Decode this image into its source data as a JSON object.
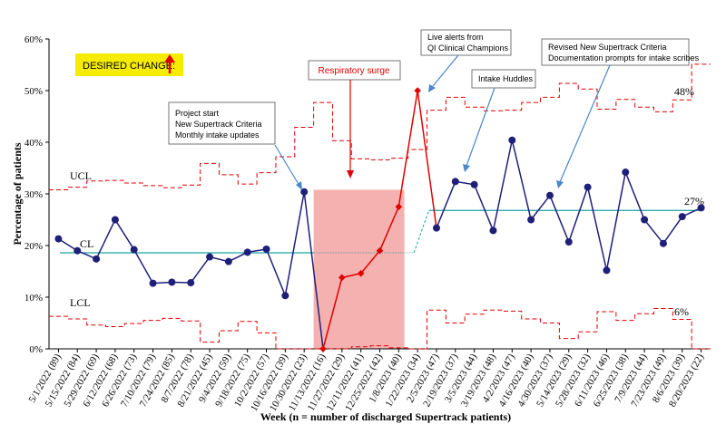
{
  "chart_data": {
    "type": "line",
    "title": "",
    "xlabel": "Week (n = number of discharged Supertrack patients)",
    "ylabel": "Percentage of patients",
    "ylim": [
      0,
      60
    ],
    "y_ticks": [
      "0%",
      "10%",
      "20%",
      "30%",
      "40%",
      "50%",
      "60%"
    ],
    "categories": [
      "5/1/2022 (89)",
      "5/15/2022 (84)",
      "5/29/2022 (69)",
      "6/12/2022 (68)",
      "6/26/2022 (73)",
      "7/10/2022 (79)",
      "7/24/2022 (85)",
      "8/7/2022 (78)",
      "8/21/2022 (45)",
      "9/4/2022 (59)",
      "9/18/2022 (75)",
      "10/2/2022 (57)",
      "10/16/2022 (39)",
      "10/30/2022 (23)",
      "11/13/2022 (16)",
      "11/27/2022 (29)",
      "12/11/2022 (41)",
      "12/25/2022 (42)",
      "1/8/2023 (40)",
      "1/22/2023 (34)",
      "2/5/2023 (47)",
      "2/19/2023 (37)",
      "3/5/2023 (44)",
      "3/19/2023 (48)",
      "4/2/2023 (47)",
      "4/16/2023 (40)",
      "4/30/2023 (37)",
      "5/14/2023 (29)",
      "5/28/2023 (32)",
      "6/11/2023 (46)",
      "6/25/2023 (38)",
      "7/9/2023 (44)",
      "7/23/2023 (49)",
      "8/6/2023 (39)",
      "8/20/2023 (22)"
    ],
    "series": [
      {
        "values": [
          21.3,
          19.0,
          17.4,
          25.0,
          19.2,
          12.7,
          12.9,
          12.8,
          17.8,
          16.9,
          18.7,
          19.3,
          10.3,
          30.4,
          0.0,
          13.8,
          14.6,
          19.0,
          27.5,
          50.0,
          23.4,
          32.4,
          31.8,
          22.9,
          40.4,
          25.0,
          29.7,
          20.7,
          31.3,
          15.2,
          34.2,
          25.0,
          20.4,
          25.6,
          27.3
        ],
        "color_by_point": [
          "#1f1f7a",
          "#1f1f7a",
          "#1f1f7a",
          "#1f1f7a",
          "#1f1f7a",
          "#1f1f7a",
          "#1f1f7a",
          "#1f1f7a",
          "#1f1f7a",
          "#1f1f7a",
          "#1f1f7a",
          "#1f1f7a",
          "#1f1f7a",
          "#1f1f7a",
          "#e00000",
          "#e00000",
          "#e00000",
          "#e00000",
          "#e00000",
          "#e00000",
          "#1f1f7a",
          "#1f1f7a",
          "#1f1f7a",
          "#1f1f7a",
          "#1f1f7a",
          "#1f1f7a",
          "#1f1f7a",
          "#1f1f7a",
          "#1f1f7a",
          "#1f1f7a",
          "#1f1f7a",
          "#1f1f7a",
          "#1f1f7a",
          "#1f1f7a",
          "#1f1f7a"
        ]
      }
    ],
    "ucl": [
      30.8,
      31.3,
      32.5,
      32.6,
      32.1,
      31.6,
      31.2,
      31.7,
      35.9,
      33.7,
      31.9,
      34.1,
      37.2,
      42.9,
      47.7,
      40.3,
      36.8,
      36.6,
      36.9,
      38.6,
      46.2,
      48.7,
      46.8,
      46.1,
      46.2,
      47.7,
      48.7,
      51.4,
      50.3,
      46.4,
      48.3,
      46.8,
      45.9,
      48.2,
      55.1
    ],
    "lcl": [
      6.3,
      5.8,
      4.6,
      4.3,
      4.9,
      5.5,
      5.9,
      5.4,
      1.3,
      3.5,
      5.3,
      3.1,
      0.0,
      0.0,
      0.0,
      0.0,
      0.4,
      0.6,
      0.2,
      0.0,
      7.5,
      5.0,
      6.7,
      7.5,
      7.3,
      5.8,
      5.0,
      2.0,
      3.3,
      7.2,
      5.5,
      6.8,
      7.8,
      5.7,
      0.0
    ],
    "center_line": {
      "before": 18.6,
      "after": 26.8,
      "shift_index": 20
    },
    "limit_labels": {
      "ucl": "UCL",
      "cl": "CL",
      "lcl": "LCL"
    },
    "end_labels": {
      "ucl": "48%",
      "cl": "27%",
      "lcl": "6%"
    },
    "shaded_region": {
      "label": "Respiratory surge",
      "from_index": 13.5,
      "to_index": 18.3,
      "top": 30.8
    },
    "desired_change": "DESIRED CHANGE:",
    "annotations": [
      {
        "lines": [
          "Project start",
          "New Supertrack Criteria",
          "Monthly intake updates"
        ],
        "target_index": 13
      },
      {
        "lines": [
          "Live alerts from",
          "QI Clinical Champions"
        ],
        "target_index": 19
      },
      {
        "lines": [
          "Intake Huddles"
        ],
        "target_index": 21
      },
      {
        "lines": [
          "Revised New Supertrack Criteria",
          "Documentation prompts for intake scribes"
        ],
        "target_index": 26
      }
    ],
    "grid": false,
    "legend": "none",
    "colors": {
      "process": "#1f1f7a",
      "surge": "#e00000",
      "limits": "#e00000",
      "center": "#1aa3a3",
      "shade": "#f4a7a7",
      "desired_bg": "#f5ec00",
      "arrow": "#4a86c8"
    }
  }
}
